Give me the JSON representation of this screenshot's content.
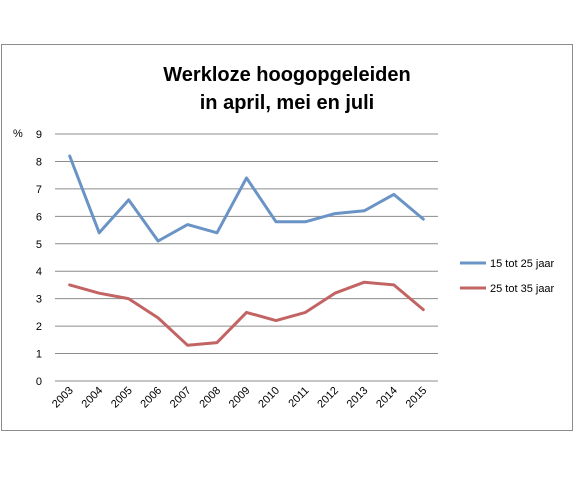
{
  "chart_data": {
    "type": "line",
    "title": [
      "Werkloze hoogopgeleiden",
      "in april, mei en juli"
    ],
    "ylabel": "%",
    "xlabel": "",
    "ylim": [
      0,
      9
    ],
    "yticks": [
      "0",
      "1",
      "2",
      "3",
      "4",
      "5",
      "6",
      "7",
      "8",
      "9"
    ],
    "grid": true,
    "legend_position": "right",
    "categories": [
      "2003",
      "2004",
      "2005",
      "2006",
      "2007",
      "2008",
      "2009",
      "2010",
      "2011",
      "2012",
      "2013",
      "2014",
      "2015"
    ],
    "series": [
      {
        "name": "15 tot 25 jaar",
        "color": "#6A93C6",
        "values": [
          8.2,
          5.4,
          6.6,
          5.1,
          5.7,
          5.4,
          7.4,
          5.8,
          5.8,
          6.1,
          6.2,
          6.8,
          5.9
        ]
      },
      {
        "name": "25 tot 35 jaar",
        "color": "#C36464",
        "values": [
          3.5,
          3.2,
          3.0,
          2.3,
          1.3,
          1.4,
          2.5,
          2.2,
          2.5,
          3.2,
          3.6,
          3.5,
          2.6
        ]
      }
    ]
  }
}
